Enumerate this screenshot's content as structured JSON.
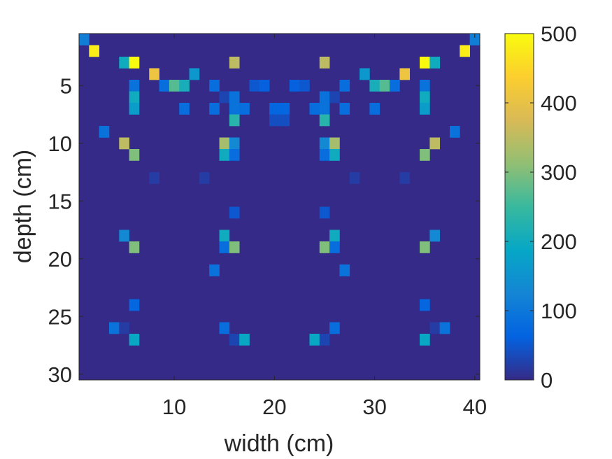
{
  "chart_data": {
    "type": "heatmap",
    "title": "",
    "xlabel": "width (cm)",
    "ylabel": "depth (cm)",
    "x_range": [
      1,
      40
    ],
    "y_range": [
      1,
      30
    ],
    "x_ticks": [
      10,
      20,
      30,
      40
    ],
    "y_ticks": [
      5,
      10,
      15,
      20,
      25,
      30
    ],
    "y_direction": "reversed",
    "grid": false,
    "background_value": 0,
    "colorbar": {
      "placement": "right",
      "range": [
        0,
        500
      ],
      "ticks": [
        0,
        100,
        200,
        300,
        400,
        500
      ],
      "colormap": "parula",
      "colors": [
        "#352a87",
        "#0363e1",
        "#1485d4",
        "#06a7c6",
        "#38b99e",
        "#92bf73",
        "#d9ba56",
        "#fcce2e",
        "#f9fb0e"
      ]
    },
    "cells": [
      {
        "x": 1,
        "y": 1,
        "v": 110
      },
      {
        "x": 40,
        "y": 1,
        "v": 110
      },
      {
        "x": 2,
        "y": 2,
        "v": 480
      },
      {
        "x": 39,
        "y": 2,
        "v": 480
      },
      {
        "x": 5,
        "y": 3,
        "v": 200
      },
      {
        "x": 6,
        "y": 3,
        "v": 500
      },
      {
        "x": 16,
        "y": 3,
        "v": 350
      },
      {
        "x": 25,
        "y": 3,
        "v": 350
      },
      {
        "x": 35,
        "y": 3,
        "v": 500
      },
      {
        "x": 36,
        "y": 3,
        "v": 200
      },
      {
        "x": 8,
        "y": 4,
        "v": 410
      },
      {
        "x": 12,
        "y": 4,
        "v": 160
      },
      {
        "x": 29,
        "y": 4,
        "v": 160
      },
      {
        "x": 33,
        "y": 4,
        "v": 410
      },
      {
        "x": 6,
        "y": 5,
        "v": 90
      },
      {
        "x": 9,
        "y": 5,
        "v": 80
      },
      {
        "x": 10,
        "y": 5,
        "v": 270
      },
      {
        "x": 11,
        "y": 5,
        "v": 210
      },
      {
        "x": 14,
        "y": 5,
        "v": 80
      },
      {
        "x": 18,
        "y": 5,
        "v": 50
      },
      {
        "x": 19,
        "y": 5,
        "v": 60
      },
      {
        "x": 22,
        "y": 5,
        "v": 60
      },
      {
        "x": 23,
        "y": 5,
        "v": 50
      },
      {
        "x": 27,
        "y": 5,
        "v": 80
      },
      {
        "x": 30,
        "y": 5,
        "v": 210
      },
      {
        "x": 31,
        "y": 5,
        "v": 270
      },
      {
        "x": 32,
        "y": 5,
        "v": 80
      },
      {
        "x": 35,
        "y": 5,
        "v": 90
      },
      {
        "x": 6,
        "y": 6,
        "v": 200
      },
      {
        "x": 15,
        "y": 6,
        "v": 30
      },
      {
        "x": 16,
        "y": 6,
        "v": 90
      },
      {
        "x": 25,
        "y": 6,
        "v": 90
      },
      {
        "x": 26,
        "y": 6,
        "v": 30
      },
      {
        "x": 35,
        "y": 6,
        "v": 200
      },
      {
        "x": 6,
        "y": 7,
        "v": 170
      },
      {
        "x": 11,
        "y": 7,
        "v": 80
      },
      {
        "x": 14,
        "y": 7,
        "v": 80
      },
      {
        "x": 16,
        "y": 7,
        "v": 90
      },
      {
        "x": 17,
        "y": 7,
        "v": 80
      },
      {
        "x": 20,
        "y": 7,
        "v": 70
      },
      {
        "x": 21,
        "y": 7,
        "v": 70
      },
      {
        "x": 24,
        "y": 7,
        "v": 80
      },
      {
        "x": 25,
        "y": 7,
        "v": 90
      },
      {
        "x": 27,
        "y": 7,
        "v": 80
      },
      {
        "x": 30,
        "y": 7,
        "v": 80
      },
      {
        "x": 35,
        "y": 7,
        "v": 170
      },
      {
        "x": 16,
        "y": 8,
        "v": 230
      },
      {
        "x": 20,
        "y": 8,
        "v": 40
      },
      {
        "x": 21,
        "y": 8,
        "v": 40
      },
      {
        "x": 25,
        "y": 8,
        "v": 230
      },
      {
        "x": 3,
        "y": 9,
        "v": 90
      },
      {
        "x": 38,
        "y": 9,
        "v": 90
      },
      {
        "x": 5,
        "y": 10,
        "v": 350
      },
      {
        "x": 15,
        "y": 10,
        "v": 330
      },
      {
        "x": 16,
        "y": 10,
        "v": 130
      },
      {
        "x": 25,
        "y": 10,
        "v": 130
      },
      {
        "x": 26,
        "y": 10,
        "v": 330
      },
      {
        "x": 36,
        "y": 10,
        "v": 350
      },
      {
        "x": 6,
        "y": 11,
        "v": 300
      },
      {
        "x": 15,
        "y": 11,
        "v": 200
      },
      {
        "x": 16,
        "y": 11,
        "v": 80
      },
      {
        "x": 25,
        "y": 11,
        "v": 80
      },
      {
        "x": 26,
        "y": 11,
        "v": 200
      },
      {
        "x": 35,
        "y": 11,
        "v": 300
      },
      {
        "x": 8,
        "y": 13,
        "v": 20
      },
      {
        "x": 13,
        "y": 13,
        "v": 20
      },
      {
        "x": 28,
        "y": 13,
        "v": 20
      },
      {
        "x": 33,
        "y": 13,
        "v": 20
      },
      {
        "x": 16,
        "y": 16,
        "v": 50
      },
      {
        "x": 25,
        "y": 16,
        "v": 50
      },
      {
        "x": 5,
        "y": 18,
        "v": 130
      },
      {
        "x": 15,
        "y": 18,
        "v": 200
      },
      {
        "x": 26,
        "y": 18,
        "v": 200
      },
      {
        "x": 36,
        "y": 18,
        "v": 130
      },
      {
        "x": 6,
        "y": 19,
        "v": 300
      },
      {
        "x": 15,
        "y": 19,
        "v": 80
      },
      {
        "x": 16,
        "y": 19,
        "v": 300
      },
      {
        "x": 25,
        "y": 19,
        "v": 300
      },
      {
        "x": 26,
        "y": 19,
        "v": 80
      },
      {
        "x": 35,
        "y": 19,
        "v": 300
      },
      {
        "x": 14,
        "y": 21,
        "v": 90
      },
      {
        "x": 27,
        "y": 21,
        "v": 90
      },
      {
        "x": 6,
        "y": 24,
        "v": 70
      },
      {
        "x": 35,
        "y": 24,
        "v": 70
      },
      {
        "x": 4,
        "y": 26,
        "v": 90
      },
      {
        "x": 5,
        "y": 26,
        "v": 20
      },
      {
        "x": 15,
        "y": 26,
        "v": 80
      },
      {
        "x": 26,
        "y": 26,
        "v": 80
      },
      {
        "x": 36,
        "y": 26,
        "v": 20
      },
      {
        "x": 37,
        "y": 26,
        "v": 90
      },
      {
        "x": 6,
        "y": 27,
        "v": 190
      },
      {
        "x": 16,
        "y": 27,
        "v": 30
      },
      {
        "x": 17,
        "y": 27,
        "v": 190
      },
      {
        "x": 24,
        "y": 27,
        "v": 190
      },
      {
        "x": 25,
        "y": 27,
        "v": 30
      },
      {
        "x": 35,
        "y": 27,
        "v": 190
      }
    ]
  }
}
